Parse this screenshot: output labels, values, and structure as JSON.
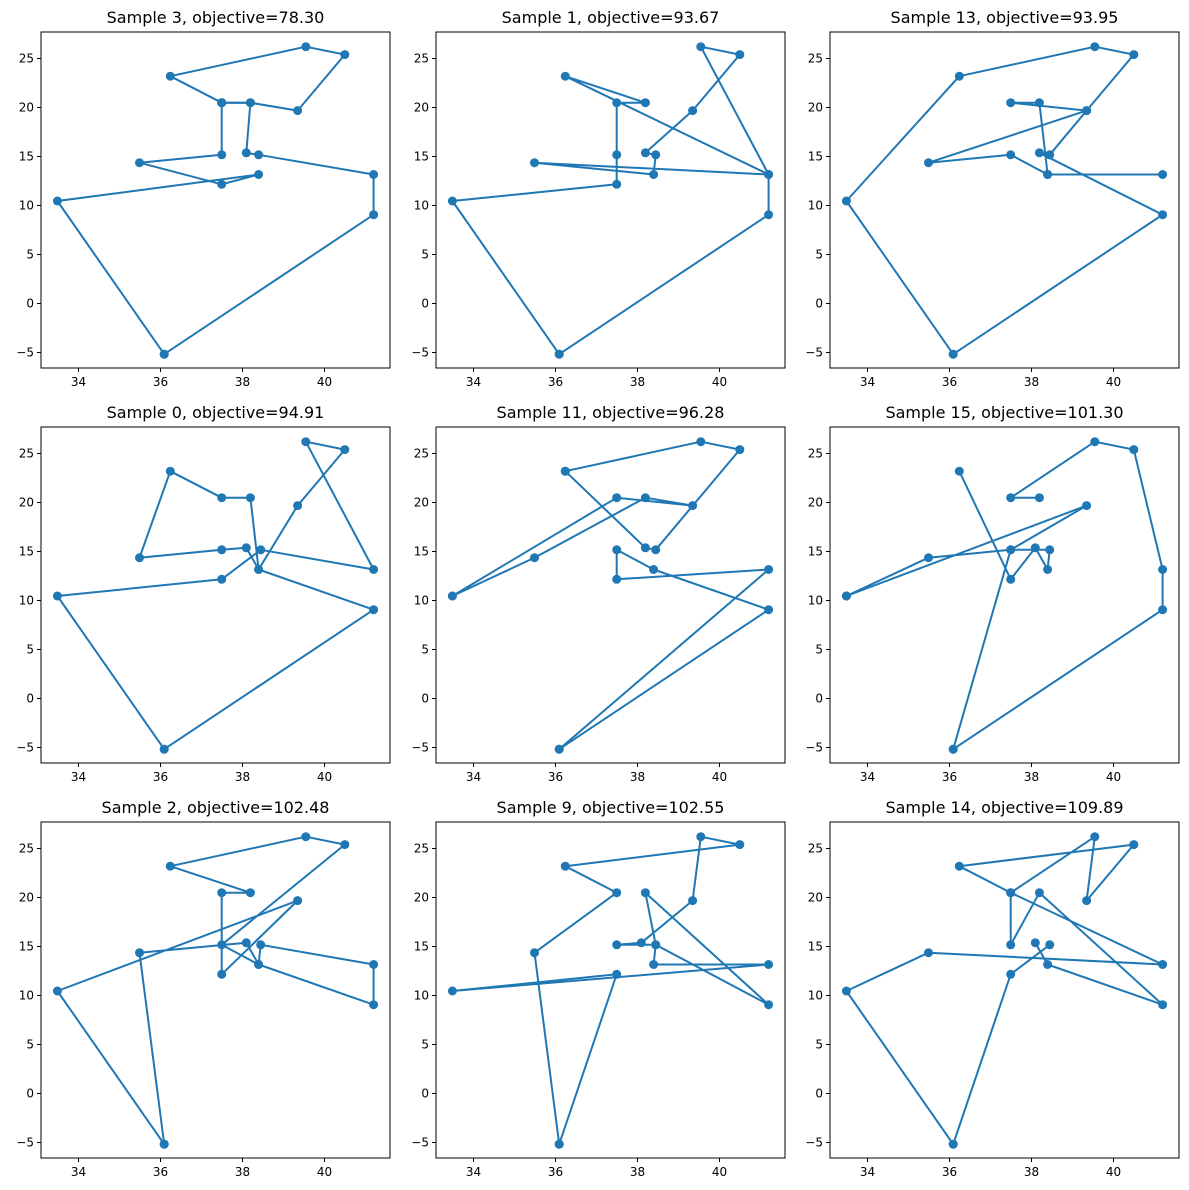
{
  "figure": {
    "grid": false,
    "line_color": "#1f77b4",
    "frame_color": "#000000"
  },
  "chart_data": [
    {
      "type": "line",
      "title": "Sample 3, objective=78.30",
      "xlabel": "",
      "ylabel": "",
      "xlim": [
        33.1,
        41.6
      ],
      "ylim": [
        -6.6,
        27.6
      ],
      "x_ticks": [
        34,
        36,
        38,
        40
      ],
      "y_ticks": [
        -5,
        0,
        5,
        10,
        15,
        20,
        25
      ],
      "x_tick_labels": [
        "34",
        "36",
        "38",
        "40"
      ],
      "y_tick_labels": [
        "−5",
        "0",
        "5",
        "10",
        "15",
        "20",
        "25"
      ],
      "series": [
        {
          "x": [
            36.1,
            33.5,
            38.4,
            37.5,
            35.5,
            37.5,
            37.5,
            38.2,
            38.1,
            38.4,
            41.2,
            41.2,
            36.1
          ],
          "y": [
            -5.2,
            10.4,
            13.1,
            12.1,
            14.3,
            15.1,
            20.4,
            20.4,
            15.3,
            15.1,
            13.1,
            9.0,
            -5.2
          ]
        },
        {
          "x": [
            37.5,
            38.2,
            39.35,
            40.5,
            39.55,
            36.25,
            37.5
          ],
          "y": [
            20.4,
            20.4,
            19.6,
            25.3,
            26.1,
            23.1,
            20.4
          ]
        }
      ]
    },
    {
      "type": "line",
      "title": "Sample 1, objective=93.67",
      "xlabel": "",
      "ylabel": "",
      "xlim": [
        33.1,
        41.6
      ],
      "ylim": [
        -6.6,
        27.6
      ],
      "x_ticks": [
        34,
        36,
        38,
        40
      ],
      "y_ticks": [
        -5,
        0,
        5,
        10,
        15,
        20,
        25
      ],
      "x_tick_labels": [
        "34",
        "36",
        "38",
        "40"
      ],
      "y_tick_labels": [
        "−5",
        "0",
        "5",
        "10",
        "15",
        "20",
        "25"
      ],
      "series": [
        {
          "x": [
            36.1,
            33.5,
            37.5,
            37.5,
            37.5,
            38.2,
            36.25,
            41.2,
            39.55,
            40.5,
            39.35,
            38.2,
            38.45,
            38.4,
            35.5,
            41.2,
            41.2,
            36.1
          ],
          "y": [
            -5.2,
            10.4,
            12.1,
            15.1,
            20.4,
            20.4,
            23.1,
            13.1,
            26.1,
            25.3,
            19.6,
            15.3,
            15.1,
            13.1,
            14.3,
            13.1,
            9.0,
            -5.2
          ]
        }
      ]
    },
    {
      "type": "line",
      "title": "Sample 13, objective=93.95",
      "xlabel": "",
      "ylabel": "",
      "xlim": [
        33.1,
        41.6
      ],
      "ylim": [
        -6.6,
        27.6
      ],
      "x_ticks": [
        34,
        36,
        38,
        40
      ],
      "y_ticks": [
        -5,
        0,
        5,
        10,
        15,
        20,
        25
      ],
      "x_tick_labels": [
        "34",
        "36",
        "38",
        "40"
      ],
      "y_tick_labels": [
        "−5",
        "0",
        "5",
        "10",
        "15",
        "20",
        "25"
      ],
      "series": [
        {
          "x": [
            36.1,
            33.5,
            36.25,
            39.55,
            40.5,
            39.35,
            35.5,
            37.5,
            38.4,
            41.2,
            38.4,
            38.2,
            37.5,
            39.35,
            38.45,
            38.2,
            41.2,
            36.1
          ],
          "y": [
            -5.2,
            10.4,
            23.1,
            26.1,
            25.3,
            19.6,
            14.3,
            15.1,
            13.1,
            13.1,
            13.1,
            20.4,
            20.4,
            19.6,
            15.1,
            15.3,
            9.0,
            -5.2
          ]
        }
      ]
    },
    {
      "type": "line",
      "title": "Sample 0, objective=94.91",
      "xlabel": "",
      "ylabel": "",
      "xlim": [
        33.1,
        41.6
      ],
      "ylim": [
        -6.6,
        27.6
      ],
      "x_ticks": [
        34,
        36,
        38,
        40
      ],
      "y_ticks": [
        -5,
        0,
        5,
        10,
        15,
        20,
        25
      ],
      "x_tick_labels": [
        "34",
        "36",
        "38",
        "40"
      ],
      "y_tick_labels": [
        "−5",
        "0",
        "5",
        "10",
        "15",
        "20",
        "25"
      ],
      "series": [
        {
          "x": [
            36.1,
            33.5,
            37.5,
            38.45,
            41.2,
            39.55,
            40.5,
            39.35,
            38.4,
            38.2,
            37.5,
            36.25,
            35.5,
            37.5,
            38.1,
            38.4,
            41.2,
            36.1
          ],
          "y": [
            -5.2,
            10.4,
            12.1,
            15.1,
            13.1,
            26.1,
            25.3,
            19.6,
            13.1,
            20.4,
            20.4,
            23.1,
            14.3,
            15.1,
            15.3,
            13.1,
            9.0,
            -5.2
          ]
        }
      ]
    },
    {
      "type": "line",
      "title": "Sample 11, objective=96.28",
      "xlabel": "",
      "ylabel": "",
      "xlim": [
        33.1,
        41.6
      ],
      "ylim": [
        -6.6,
        27.6
      ],
      "x_ticks": [
        34,
        36,
        38,
        40
      ],
      "y_ticks": [
        -5,
        0,
        5,
        10,
        15,
        20,
        25
      ],
      "x_tick_labels": [
        "34",
        "36",
        "38",
        "40"
      ],
      "y_tick_labels": [
        "−5",
        "0",
        "5",
        "10",
        "15",
        "20",
        "25"
      ],
      "series": [
        {
          "x": [
            36.1,
            41.2,
            37.5,
            37.5,
            38.4,
            41.2,
            36.1
          ],
          "y": [
            -5.2,
            13.1,
            12.1,
            15.1,
            13.1,
            9.0,
            -5.2
          ]
        },
        {
          "x": [
            36.25,
            38.2,
            38.45,
            40.5,
            39.55,
            36.25
          ],
          "y": [
            23.1,
            15.3,
            15.1,
            25.3,
            26.1,
            23.1
          ]
        },
        {
          "x": [
            33.5,
            35.5,
            38.2,
            39.35,
            37.5,
            33.5
          ],
          "y": [
            10.4,
            14.3,
            20.4,
            19.6,
            20.4,
            10.4
          ]
        }
      ]
    },
    {
      "type": "line",
      "title": "Sample 15, objective=101.30",
      "xlabel": "",
      "ylabel": "",
      "xlim": [
        33.1,
        41.6
      ],
      "ylim": [
        -6.6,
        27.6
      ],
      "x_ticks": [
        34,
        36,
        38,
        40
      ],
      "y_ticks": [
        -5,
        0,
        5,
        10,
        15,
        20,
        25
      ],
      "x_tick_labels": [
        "34",
        "36",
        "38",
        "40"
      ],
      "y_tick_labels": [
        "−5",
        "0",
        "5",
        "10",
        "15",
        "20",
        "25"
      ],
      "series": [
        {
          "x": [
            36.1,
            41.2,
            41.2,
            40.5,
            39.55,
            37.5,
            38.2
          ],
          "y": [
            -5.2,
            9.0,
            13.1,
            25.3,
            26.1,
            20.4,
            20.4
          ]
        },
        {
          "x": [
            36.1,
            37.5,
            38.45,
            38.4,
            38.1,
            37.5,
            36.25
          ],
          "y": [
            -5.2,
            15.1,
            15.1,
            13.1,
            15.3,
            12.1,
            23.1
          ]
        },
        {
          "x": [
            33.5,
            35.5,
            37.5,
            39.35,
            33.5
          ],
          "y": [
            10.4,
            14.3,
            15.1,
            19.6,
            10.4
          ]
        }
      ]
    },
    {
      "type": "line",
      "title": "Sample 2, objective=102.48",
      "xlabel": "",
      "ylabel": "",
      "xlim": [
        33.1,
        41.6
      ],
      "ylim": [
        -6.6,
        27.6
      ],
      "x_ticks": [
        34,
        36,
        38,
        40
      ],
      "y_ticks": [
        -5,
        0,
        5,
        10,
        15,
        20,
        25
      ],
      "x_tick_labels": [
        "34",
        "36",
        "38",
        "40"
      ],
      "y_tick_labels": [
        "−5",
        "0",
        "5",
        "10",
        "15",
        "20",
        "25"
      ],
      "series": [
        {
          "x": [
            36.1,
            33.5,
            39.35,
            37.5,
            37.5,
            38.2,
            36.25,
            39.55,
            40.5,
            37.5,
            38.4,
            38.45,
            41.2,
            41.2,
            38.4,
            38.1,
            35.5,
            36.1
          ],
          "y": [
            -5.2,
            10.4,
            19.6,
            12.1,
            20.4,
            20.4,
            23.1,
            26.1,
            25.3,
            15.1,
            13.1,
            15.1,
            13.1,
            9.0,
            13.1,
            15.3,
            14.3,
            -5.2
          ]
        }
      ]
    },
    {
      "type": "line",
      "title": "Sample 9, objective=102.55",
      "xlabel": "",
      "ylabel": "",
      "xlim": [
        33.1,
        41.6
      ],
      "ylim": [
        -6.6,
        27.6
      ],
      "x_ticks": [
        34,
        36,
        38,
        40
      ],
      "y_ticks": [
        -5,
        0,
        5,
        10,
        15,
        20,
        25
      ],
      "x_tick_labels": [
        "34",
        "36",
        "38",
        "40"
      ],
      "y_tick_labels": [
        "−5",
        "0",
        "5",
        "10",
        "15",
        "20",
        "25"
      ],
      "series": [
        {
          "x": [
            36.1,
            35.5,
            37.5,
            36.25,
            40.5,
            39.55,
            39.35,
            38.1,
            37.5,
            38.45,
            41.2,
            38.2,
            38.45,
            38.4,
            41.2,
            33.5,
            37.5,
            36.1
          ],
          "y": [
            -5.2,
            14.3,
            20.4,
            23.1,
            25.3,
            26.1,
            19.6,
            15.3,
            15.1,
            15.1,
            9.0,
            20.4,
            15.1,
            13.1,
            13.1,
            10.4,
            12.1,
            -5.2
          ]
        }
      ]
    },
    {
      "type": "line",
      "title": "Sample 14, objective=109.89",
      "xlabel": "",
      "ylabel": "",
      "xlim": [
        33.1,
        41.6
      ],
      "ylim": [
        -6.6,
        27.6
      ],
      "x_ticks": [
        34,
        36,
        38,
        40
      ],
      "y_ticks": [
        -5,
        0,
        5,
        10,
        15,
        20,
        25
      ],
      "x_tick_labels": [
        "34",
        "36",
        "38",
        "40"
      ],
      "y_tick_labels": [
        "−5",
        "0",
        "5",
        "10",
        "15",
        "20",
        "25"
      ],
      "series": [
        {
          "x": [
            36.1,
            33.5,
            35.5,
            41.2,
            37.5,
            36.25,
            40.5,
            39.35,
            39.55,
            37.5,
            37.5,
            38.2,
            41.2,
            38.4,
            38.1
          ],
          "y": [
            -5.2,
            10.4,
            14.3,
            13.1,
            20.4,
            23.1,
            25.3,
            19.6,
            26.1,
            20.4,
            15.1,
            20.4,
            9.0,
            13.1,
            15.3
          ]
        },
        {
          "x": [
            36.1,
            37.5,
            38.45
          ],
          "y": [
            -5.2,
            12.1,
            15.1
          ]
        }
      ]
    }
  ]
}
